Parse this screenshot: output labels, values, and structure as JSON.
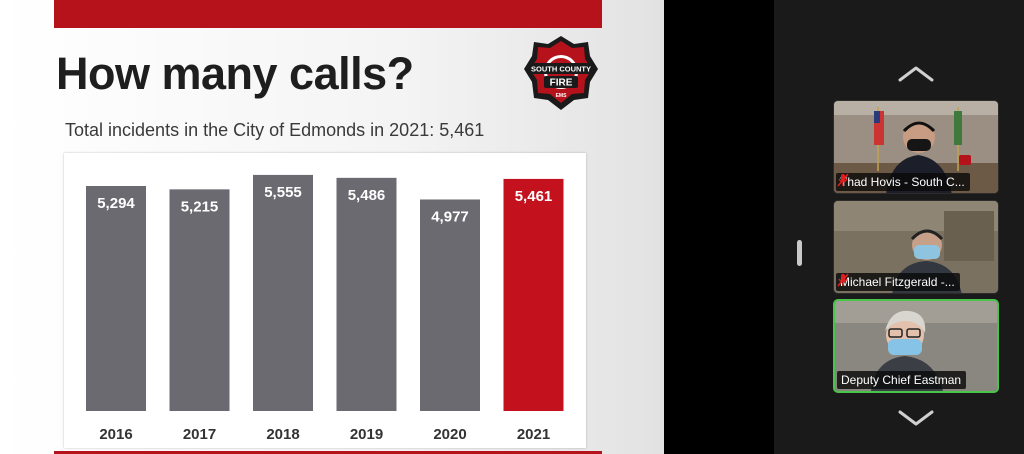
{
  "slide": {
    "title": "How many calls?",
    "subtitle": "Total incidents in the City of Edmonds in 2021: 5,461",
    "logo": {
      "text_top": "SOUTH COUNTY",
      "text_mid": "FIRE",
      "text_bottom": "EMS",
      "color": "#b5121b"
    }
  },
  "chart_data": {
    "type": "bar",
    "categories": [
      "2016",
      "2017",
      "2018",
      "2019",
      "2020",
      "2021"
    ],
    "values": [
      5294,
      5215,
      5555,
      5486,
      4977,
      5461
    ],
    "data_labels": [
      "5,294",
      "5,215",
      "5,555",
      "5,486",
      "4,977",
      "5,461"
    ],
    "colors": [
      "#6b6a70",
      "#6b6a70",
      "#6b6a70",
      "#6b6a70",
      "#6b6a70",
      "#c3121e"
    ],
    "title": "",
    "xlabel": "",
    "ylabel": "",
    "ylim": [
      0,
      5600
    ],
    "grid": false,
    "legend": "none"
  },
  "participants": [
    {
      "name": "Thad Hovis - South C...",
      "muted": true,
      "active": false
    },
    {
      "name": "Michael Fitzgerald -...",
      "muted": true,
      "active": false
    },
    {
      "name": "Deputy Chief Eastman",
      "muted": false,
      "active": true
    }
  ],
  "sidebar": {
    "scroll_up_icon": "chevron-up-icon",
    "scroll_down_icon": "chevron-down-icon",
    "active_speaker_color": "#49c54a",
    "muted_icon_color": "#e02020"
  }
}
